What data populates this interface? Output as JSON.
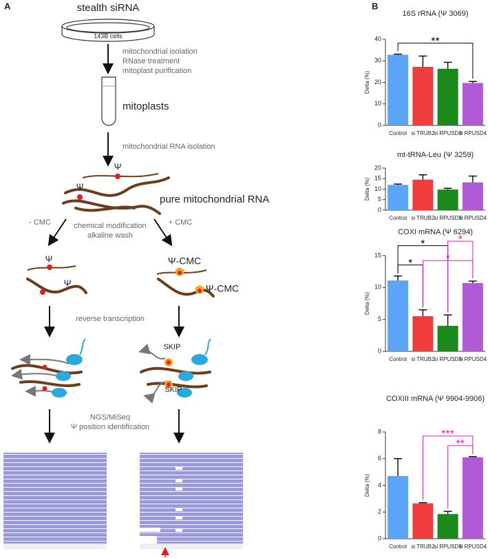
{
  "panel_a": {
    "label": "A",
    "sirna": "stealth siRNA",
    "dish": "143B cells",
    "isolation_steps": [
      "mitochondrial isolation",
      "RNase treatment",
      "mitoplast purification"
    ],
    "mitoplasts": "mitoplasts",
    "rna_isolation": "mitochondrial RNA isolation",
    "psi_top": [
      "Ψ",
      "Ψ"
    ],
    "pure_rna": "pure mitochondrial RNA",
    "minus_cmc": "- CMC",
    "plus_cmc": "+ CMC",
    "modification": [
      "chemical modification",
      "alkaline wash"
    ],
    "psi_left": [
      "Ψ",
      "Ψ"
    ],
    "psi_cmc": [
      "Ψ-CMC",
      "Ψ-CMC"
    ],
    "rt": "reverse transcription",
    "skip": [
      "SKIP",
      "SKIP"
    ],
    "sequencing": [
      "NGS/MiSeq",
      "Ψ position identification"
    ]
  },
  "panel_b_label": "B",
  "chart_data": [
    {
      "type": "bar",
      "title": "16S rRNA (Ψ 3069)",
      "y_label": "Delta (%)",
      "categories": [
        "Control",
        "si TRUB2",
        "si RPUSD3",
        "si RPUSD4"
      ],
      "values": [
        32.8,
        27.2,
        26.3,
        19.7
      ],
      "errors": [
        0.3,
        5,
        3,
        0.7
      ],
      "colors": [
        "#5aa5f5",
        "#f03c3c",
        "#1a8a1a",
        "#b05ad8"
      ],
      "ylim": [
        0,
        40
      ],
      "yticks": [
        0,
        10,
        20,
        30,
        40
      ],
      "annotations": [
        {
          "text": "**",
          "from": 0,
          "to": 3,
          "color": "#000000"
        }
      ]
    },
    {
      "type": "bar",
      "title": "mt-tRNA-Leu (Ψ 3259)",
      "y_label": "Delta (%)",
      "categories": [
        "Control",
        "si TRUB2",
        "si RPUSD3",
        "si RPUSD4"
      ],
      "values": [
        12,
        14.5,
        9.8,
        13.2
      ],
      "errors": [
        0.4,
        2.3,
        0.6,
        3
      ],
      "colors": [
        "#5aa5f5",
        "#f03c3c",
        "#1a8a1a",
        "#b05ad8"
      ],
      "ylim": [
        0,
        20
      ],
      "yticks": [
        0,
        5,
        10,
        15,
        20
      ],
      "annotations": []
    },
    {
      "type": "bar",
      "title": "COXI mRNA (Ψ 6294)",
      "y_label": "Delta (%)",
      "categories": [
        "Control",
        "si TRUB2",
        "si RPUSD3",
        "si RPUSD4"
      ],
      "values": [
        11.1,
        5.5,
        4.0,
        10.7
      ],
      "errors": [
        0.7,
        1.0,
        1.7,
        0.3
      ],
      "colors": [
        "#5aa5f5",
        "#f03c3c",
        "#1a8a1a",
        "#b05ad8"
      ],
      "ylim": [
        0,
        15
      ],
      "yticks": [
        0,
        5,
        10,
        15
      ],
      "annotations": [
        {
          "text": "*",
          "from": 0,
          "to": 1,
          "color": "#000000"
        },
        {
          "text": "*",
          "from": 1,
          "to": 3,
          "color": "#d62aa8"
        },
        {
          "text": "*",
          "from": 0,
          "to": 2,
          "color": "#000000"
        },
        {
          "text": "*",
          "from": 2,
          "to": 3,
          "color": "#d62aa8"
        }
      ]
    },
    {
      "type": "bar",
      "title": "COXIII mRNA (Ψ 9904-9906)",
      "y_label": "Delta (%)",
      "categories": [
        "Control",
        "si TRUB2",
        "si RPUSD3",
        "si RPUSD4"
      ],
      "values": [
        4.7,
        2.65,
        1.85,
        6.1
      ],
      "errors": [
        1.3,
        0.05,
        0.2,
        0.05
      ],
      "colors": [
        "#5aa5f5",
        "#f03c3c",
        "#1a8a1a",
        "#b05ad8"
      ],
      "ylim": [
        0,
        8
      ],
      "yticks": [
        0,
        2,
        4,
        6,
        8
      ],
      "annotations": [
        {
          "text": "**",
          "from": 2,
          "to": 3,
          "color": "#d62aa8"
        },
        {
          "text": "***",
          "from": 1,
          "to": 3,
          "color": "#d62aa8"
        }
      ]
    }
  ]
}
